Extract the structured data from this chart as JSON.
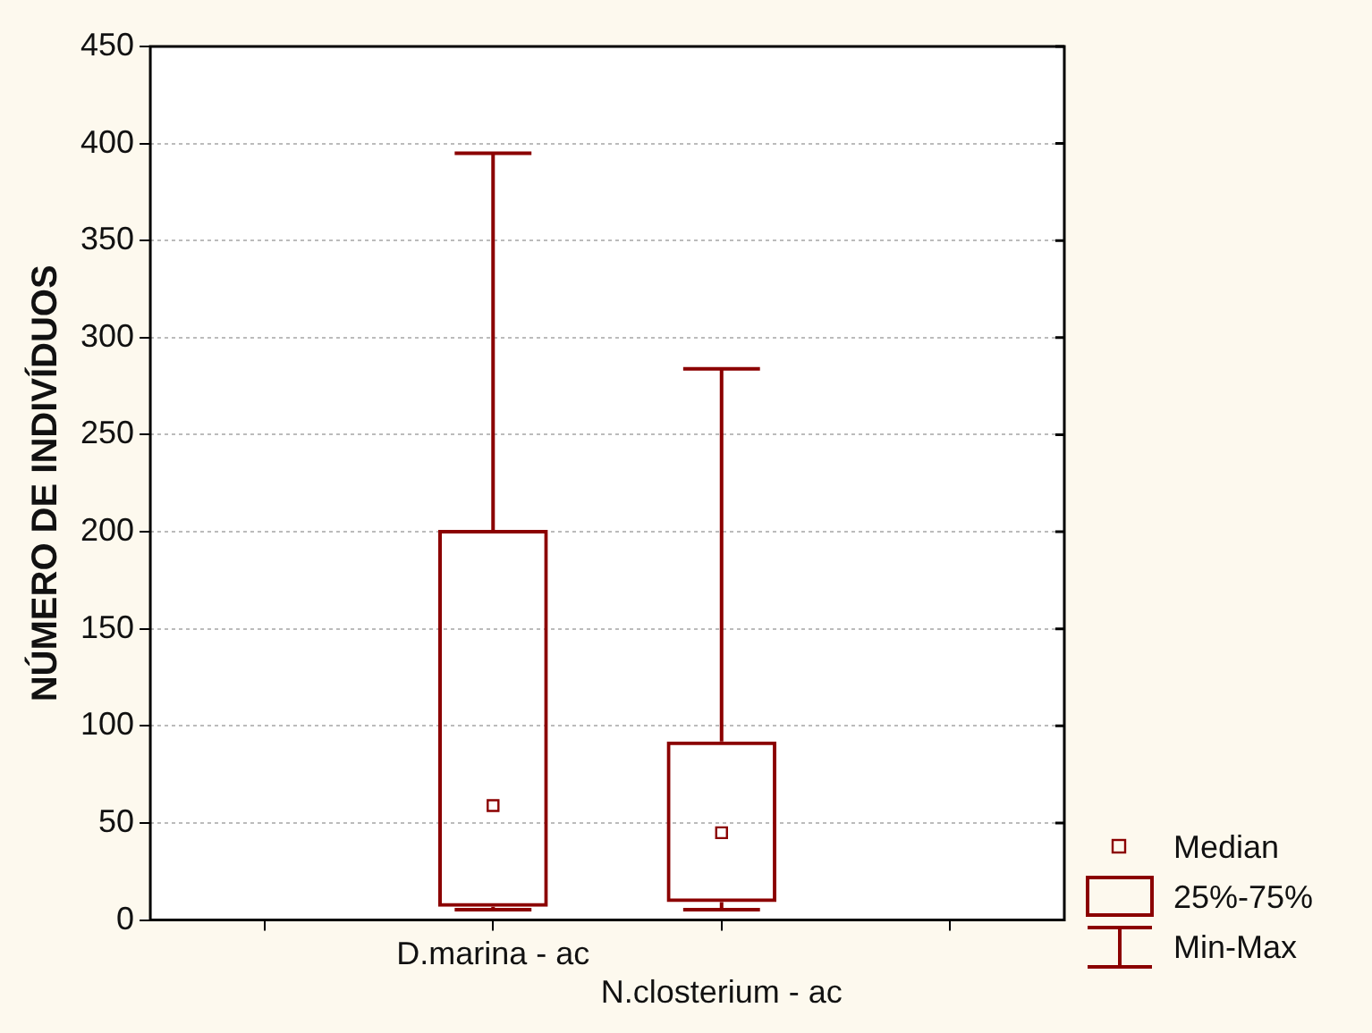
{
  "chart_data": {
    "type": "box",
    "ylabel": "NÚMERO DE INDIVÍDUOS",
    "categories": [
      null,
      "D.marina - ac",
      "N.closterium - ac",
      null
    ],
    "series": [
      {
        "color": "#8b0000",
        "boxes": [
          null,
          {
            "low": 5.3,
            "q1": 6.8,
            "median": 59,
            "q3": 201,
            "high": 395
          },
          {
            "low": 5.3,
            "q1": 9.3,
            "median": 45,
            "q3": 92,
            "high": 284
          },
          null
        ]
      }
    ],
    "ylim": [
      0,
      450
    ],
    "yticks": [
      0,
      50,
      100,
      150,
      200,
      250,
      300,
      350,
      400,
      450
    ],
    "grid": "y",
    "marker": "square",
    "annotations": [
      "Median",
      "25%-75%",
      "Min-Max"
    ]
  }
}
